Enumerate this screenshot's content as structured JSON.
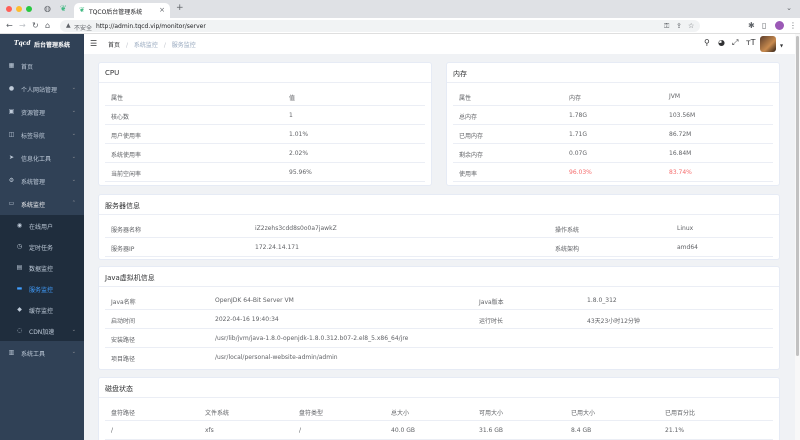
{
  "browser": {
    "tab_title": "TQCO后台管理系统",
    "tab_close": "×",
    "new_tab": "+",
    "security_label": "不安全",
    "url": "http://admin.tqcd.vip/monitor/server"
  },
  "app": {
    "logo_mark": "Tqcd",
    "logo_text": "后台管理系统"
  },
  "sidebar": {
    "items": [
      {
        "label": "首页",
        "icon": "dashboard-icon"
      },
      {
        "label": "个人网站管理",
        "icon": "user-icon",
        "arrow": "⌄"
      },
      {
        "label": "资源管理",
        "icon": "folder-icon",
        "arrow": "⌄"
      },
      {
        "label": "标签导航",
        "icon": "tag-icon",
        "arrow": "⌄"
      },
      {
        "label": "信息化工具",
        "icon": "send-icon",
        "arrow": "⌄"
      },
      {
        "label": "系统管理",
        "icon": "gear-icon",
        "arrow": "⌄"
      },
      {
        "label": "系统监控",
        "icon": "monitor-icon",
        "arrow": "⌃"
      }
    ],
    "sub_items": [
      {
        "label": "在线用户",
        "icon": "online-icon"
      },
      {
        "label": "定时任务",
        "icon": "job-icon"
      },
      {
        "label": "数据监控",
        "icon": "druid-icon"
      },
      {
        "label": "服务监控",
        "icon": "server-icon"
      },
      {
        "label": "缓存监控",
        "icon": "redis-icon"
      },
      {
        "label": "CDN加速",
        "icon": "cdn-icon",
        "arrow": "⌄"
      }
    ],
    "tools": {
      "label": "系统工具",
      "icon": "tool-icon",
      "arrow": "⌄"
    }
  },
  "breadcrumb": {
    "home": "首页",
    "level1": "系统监控",
    "level2": "服务监控",
    "separator": "/"
  },
  "cpu": {
    "title": "CPU",
    "headers": [
      "属性",
      "值"
    ],
    "rows": [
      [
        "核心数",
        "1"
      ],
      [
        "用户使用率",
        "1.01%"
      ],
      [
        "系统使用率",
        "2.02%"
      ],
      [
        "当前空闲率",
        "95.96%"
      ]
    ]
  },
  "memory": {
    "title": "内存",
    "headers": [
      "属性",
      "内存",
      "JVM"
    ],
    "rows": [
      [
        "总内存",
        "1.78G",
        "103.56M"
      ],
      [
        "已用内存",
        "1.71G",
        "86.72M"
      ],
      [
        "剩余内存",
        "0.07G",
        "16.84M"
      ],
      [
        "使用率",
        "96.03%",
        "83.74%"
      ]
    ]
  },
  "server": {
    "title": "服务器信息",
    "rows": [
      [
        "服务器名称",
        "iZ2zehs3cdd8s0o0a7jawkZ",
        "操作系统",
        "Linux"
      ],
      [
        "服务器IP",
        "172.24.14.171",
        "系统架构",
        "amd64"
      ]
    ]
  },
  "jvm": {
    "title": "Java虚拟机信息",
    "rows": [
      [
        "Java名称",
        "OpenJDK 64-Bit Server VM",
        "Java版本",
        "1.8.0_312"
      ],
      [
        "启动时间",
        "2022-04-16 19:40:34",
        "运行时长",
        "43天23小时12分钟"
      ]
    ],
    "path_rows": [
      [
        "安装路径",
        "/usr/lib/jvm/java-1.8.0-openjdk-1.8.0.312.b07-2.el8_5.x86_64/jre"
      ],
      [
        "项目路径",
        "/usr/local/personal-website-admin/admin"
      ]
    ]
  },
  "disk": {
    "title": "磁盘状态",
    "headers": [
      "盘符路径",
      "文件系统",
      "盘符类型",
      "总大小",
      "可用大小",
      "已用大小",
      "已用百分比"
    ],
    "rows": [
      [
        "/",
        "xfs",
        "/",
        "40.0 GB",
        "31.6 GB",
        "8.4 GB",
        "21.1%"
      ]
    ]
  },
  "colors": {
    "sidebar_bg": "#304156",
    "active": "#409eff",
    "danger": "#f56c6c"
  }
}
